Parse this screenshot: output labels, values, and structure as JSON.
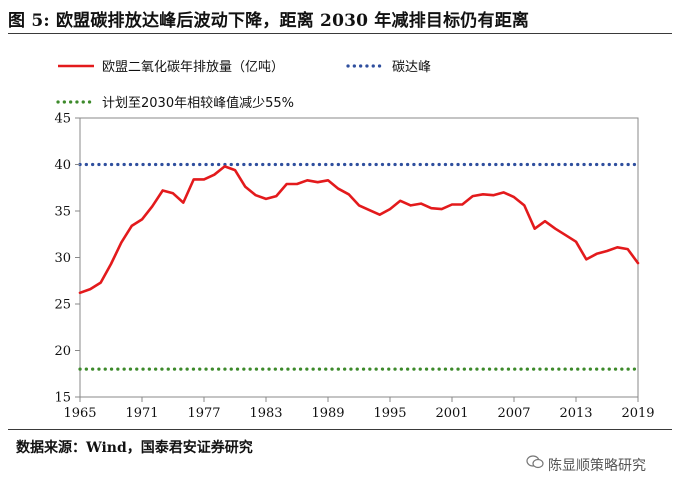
{
  "figure": {
    "title": "图 5: 欧盟碳排放达峰后波动下降，距离 2030 年减排目标仍有距离",
    "source": "数据来源：Wind，国泰君安证券研究",
    "watermark": "陈显顺策略研究"
  },
  "chart_data": {
    "type": "line",
    "xlim": [
      1965,
      2019
    ],
    "ylim": [
      15,
      45
    ],
    "xticks": [
      "1965",
      "1971",
      "1977",
      "1983",
      "1989",
      "1995",
      "2001",
      "2007",
      "2013",
      "2019"
    ],
    "yticks": [
      "15",
      "20",
      "25",
      "30",
      "35",
      "40",
      "45"
    ],
    "grid": false,
    "legend_position": "top",
    "series": [
      {
        "name": "欧盟二氧化碳年排放量（亿吨）",
        "style": "solid",
        "color": "#e31a1c",
        "x": [
          1965,
          1966,
          1967,
          1968,
          1969,
          1970,
          1971,
          1972,
          1973,
          1974,
          1975,
          1976,
          1977,
          1978,
          1979,
          1980,
          1981,
          1982,
          1983,
          1984,
          1985,
          1986,
          1987,
          1988,
          1989,
          1990,
          1991,
          1992,
          1993,
          1994,
          1995,
          1996,
          1997,
          1998,
          1999,
          2000,
          2001,
          2002,
          2003,
          2004,
          2005,
          2006,
          2007,
          2008,
          2009,
          2010,
          2011,
          2012,
          2013,
          2014,
          2015,
          2016,
          2017,
          2018,
          2019
        ],
        "values": [
          26.2,
          26.6,
          27.3,
          29.3,
          31.6,
          33.4,
          34.1,
          35.5,
          37.2,
          36.9,
          35.9,
          38.4,
          38.4,
          38.9,
          39.8,
          39.4,
          37.6,
          36.7,
          36.3,
          36.6,
          37.9,
          37.9,
          38.3,
          38.1,
          38.3,
          37.4,
          36.8,
          35.6,
          35.1,
          34.6,
          35.2,
          36.1,
          35.6,
          35.8,
          35.3,
          35.2,
          35.7,
          35.7,
          36.6,
          36.8,
          36.7,
          37.0,
          36.5,
          35.6,
          33.1,
          33.9,
          33.1,
          32.4,
          31.7,
          29.8,
          30.4,
          30.7,
          31.1,
          30.9,
          29.4
        ]
      },
      {
        "name": "碳达峰",
        "style": "dotted",
        "color": "#2f4f9e",
        "x": [
          1965,
          2019
        ],
        "values": [
          40,
          40
        ]
      },
      {
        "name": "计划至2030年相较峰值减少55%",
        "style": "dotted",
        "color": "#3d8a2b",
        "x": [
          1965,
          2019
        ],
        "values": [
          18,
          18
        ]
      }
    ]
  }
}
